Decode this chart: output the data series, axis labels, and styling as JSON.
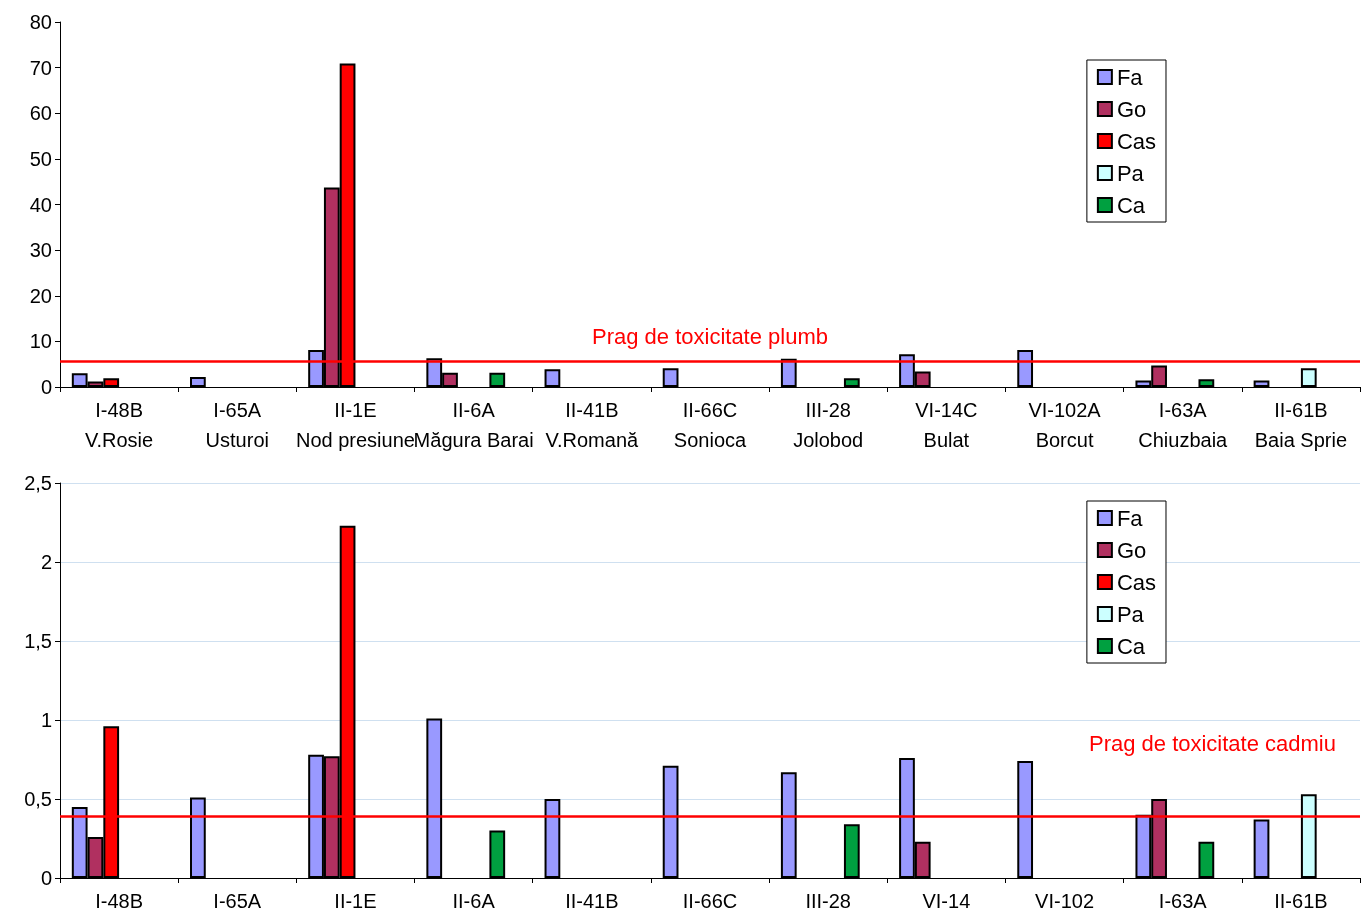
{
  "chart_data": [
    {
      "type": "bar",
      "categories": [
        "I-48B\nV.Rosie",
        "I-65A\nUsturoi",
        "II-1E\nNod presiune",
        "II-6A\nMăgura Barai",
        "II-41B\nV.Romană",
        "II-66C\nSonioca",
        "III-28\nJolobod",
        "VI-14C\nBulat",
        "VI-102A\nBorcut",
        "I-63A\nChiuzbaia",
        "II-61B\nBaia Sprie"
      ],
      "series": [
        {
          "name": "Fa",
          "color": "#9999ff",
          "values": [
            3.0,
            2.2,
            8.1,
            6.3,
            3.9,
            4.1,
            6.2,
            7.2,
            8.1,
            1.4,
            1.4
          ]
        },
        {
          "name": "Go",
          "color": "#b03060",
          "values": [
            1.2,
            null,
            43.7,
            3.1,
            null,
            null,
            null,
            3.4,
            null,
            4.7,
            null
          ]
        },
        {
          "name": "Cas",
          "color": "#ff0000",
          "values": [
            1.9,
            null,
            70.9,
            null,
            null,
            null,
            null,
            null,
            null,
            null,
            null
          ]
        },
        {
          "name": "Pa",
          "color": "#ccffff",
          "values": [
            null,
            null,
            null,
            null,
            null,
            null,
            null,
            null,
            null,
            null,
            4.1
          ]
        },
        {
          "name": "Ca",
          "color": "#00a040",
          "values": [
            null,
            null,
            null,
            3.1,
            null,
            null,
            1.9,
            null,
            null,
            1.7,
            null
          ]
        }
      ],
      "ylim": [
        0,
        80
      ],
      "yticks": [
        0,
        10,
        20,
        30,
        40,
        50,
        60,
        70,
        80
      ],
      "grid": false,
      "legend": "top right",
      "ref_lines": [
        {
          "axis": "y",
          "value": 5.6,
          "label": "Prag de toxicitate plumb",
          "color": "#ff0000"
        }
      ]
    },
    {
      "type": "bar",
      "categories": [
        "I-48B",
        "I-65A",
        "II-1E",
        "II-6A",
        "II-41B",
        "II-66C",
        "III-28",
        "VI-14",
        "VI-102",
        "I-63A",
        "II-61B"
      ],
      "series": [
        {
          "name": "Fa",
          "color": "#9999ff",
          "values": [
            0.45,
            0.51,
            0.78,
            1.01,
            0.5,
            0.71,
            0.67,
            0.76,
            0.74,
            0.4,
            0.37
          ]
        },
        {
          "name": "Go",
          "color": "#b03060",
          "values": [
            0.26,
            null,
            0.77,
            null,
            null,
            null,
            null,
            0.23,
            null,
            0.5,
            null
          ]
        },
        {
          "name": "Cas",
          "color": "#ff0000",
          "values": [
            0.96,
            null,
            2.23,
            null,
            null,
            null,
            null,
            null,
            null,
            null,
            null
          ]
        },
        {
          "name": "Pa",
          "color": "#ccffff",
          "values": [
            null,
            null,
            null,
            null,
            null,
            null,
            null,
            null,
            null,
            null,
            0.53
          ]
        },
        {
          "name": "Ca",
          "color": "#00a040",
          "values": [
            null,
            null,
            null,
            0.3,
            null,
            null,
            0.34,
            null,
            null,
            0.23,
            null
          ]
        }
      ],
      "ylim": [
        0,
        2.5
      ],
      "yticks": [
        0,
        {
          "value": 0.5,
          "label": "0,5"
        },
        1,
        {
          "value": 1.5,
          "label": "1,5"
        },
        2,
        {
          "value": 2.5,
          "label": "2,5"
        }
      ],
      "grid": "y",
      "legend": "top right",
      "ref_lines": [
        {
          "axis": "y",
          "value": 0.39,
          "label": "Prag de toxicitate cadmiu",
          "color": "#ff0000"
        }
      ]
    }
  ]
}
